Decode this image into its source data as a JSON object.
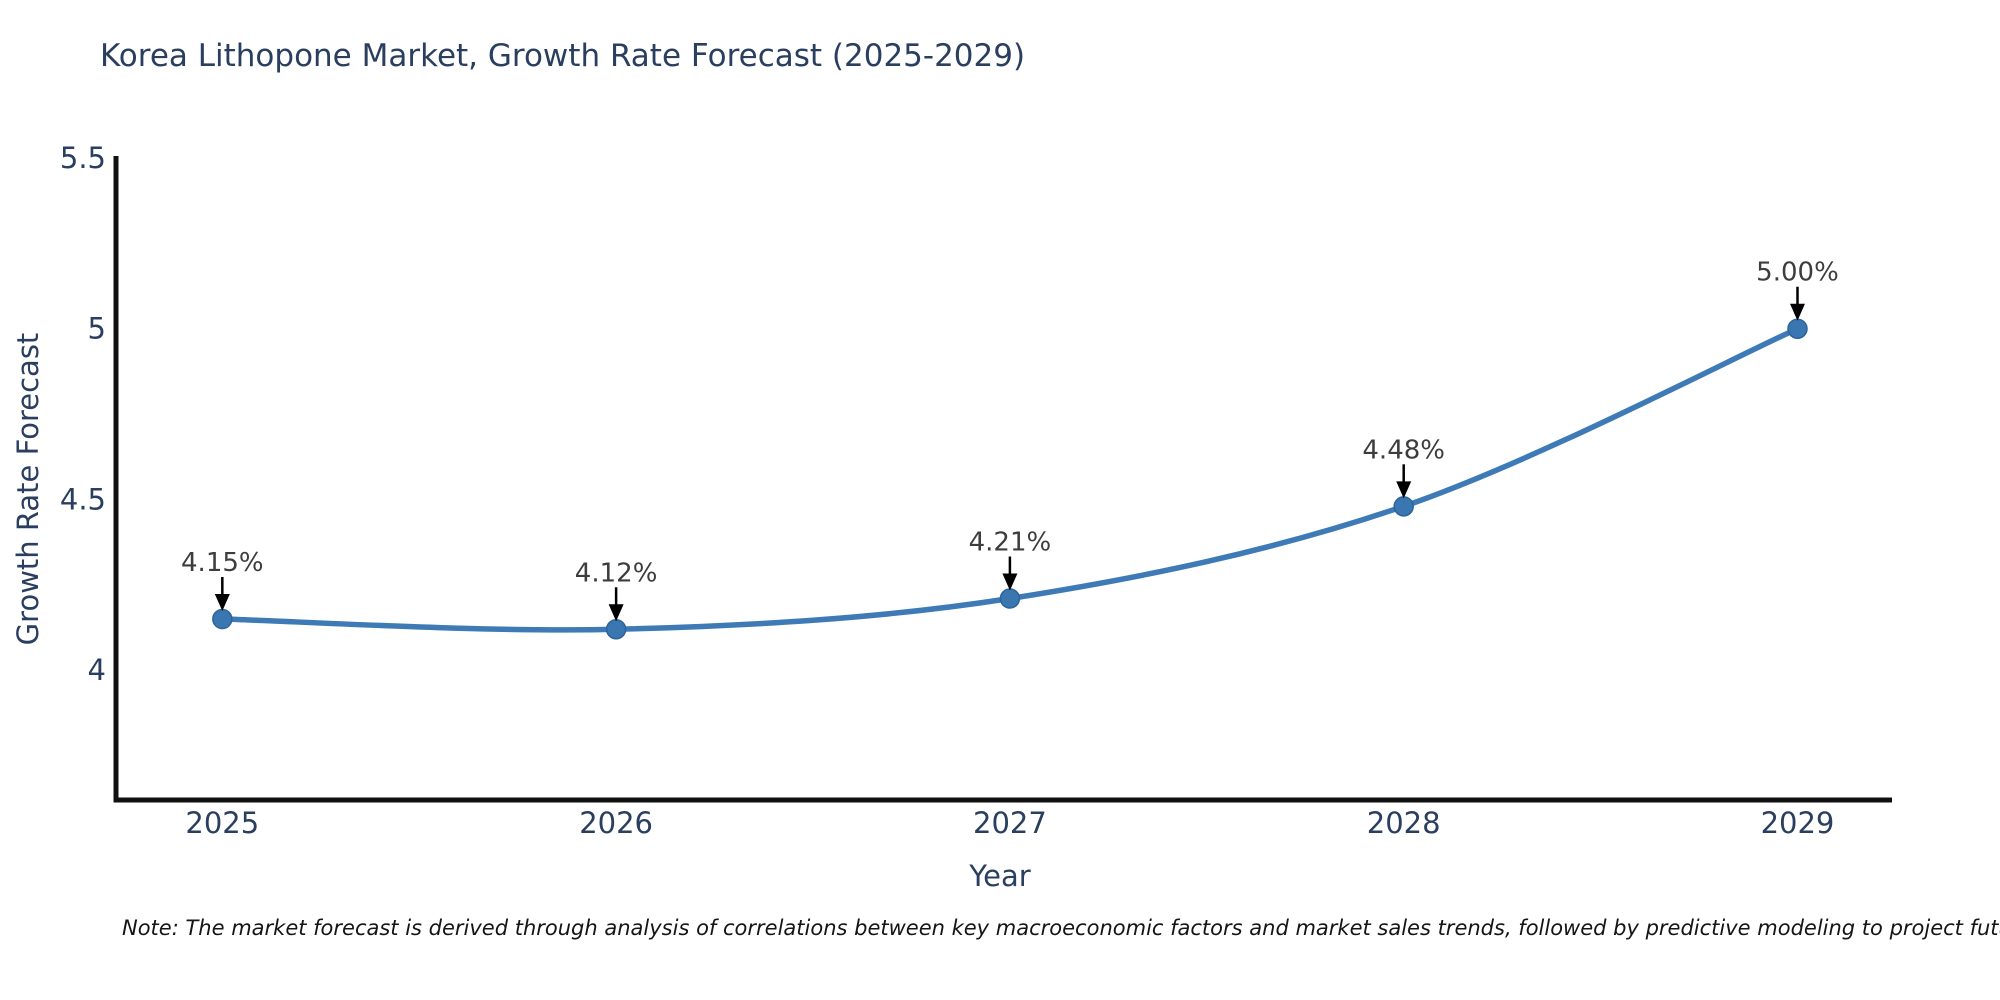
{
  "figure": {
    "title": "Korea Lithopone Market, Growth Rate Forecast (2025-2029)",
    "note": "Note: The market forecast is derived through analysis of correlations between key macroeconomic factors and market sales trends, followed by predictive modeling to project future sales"
  },
  "chart_data": {
    "type": "line",
    "title": "Korea Lithopone Market, Growth Rate Forecast (2025-2029)",
    "xlabel": "Year",
    "ylabel": "Growth Rate Forecast",
    "x": [
      2025,
      2026,
      2027,
      2028,
      2029
    ],
    "x_tick_labels": [
      "2025",
      "2026",
      "2027",
      "2028",
      "2029"
    ],
    "series": [
      {
        "name": "Growth Rate Forecast",
        "values": [
          4.15,
          4.12,
          4.21,
          4.48,
          5.0
        ]
      }
    ],
    "point_labels": [
      "4.15%",
      "4.12%",
      "4.21%",
      "4.48%",
      "5.00%"
    ],
    "yticks": [
      4,
      4.5,
      5,
      5.5
    ],
    "ytick_labels": [
      "4",
      "4.5",
      "5",
      "5.5"
    ],
    "xlim": [
      2024.73,
      2029.24
    ],
    "ylim": [
      3.62,
      5.5
    ],
    "grid": false,
    "legend": "none",
    "smooth": true,
    "colors": {
      "line": "#3e7bb6",
      "marker_fill": "#3a76b0",
      "marker_edge": "#2e6499",
      "arrow": "#000000",
      "annotation_text": "#3d3d3d",
      "axis_text": "#2a3f5f",
      "spine": "#111111"
    }
  }
}
